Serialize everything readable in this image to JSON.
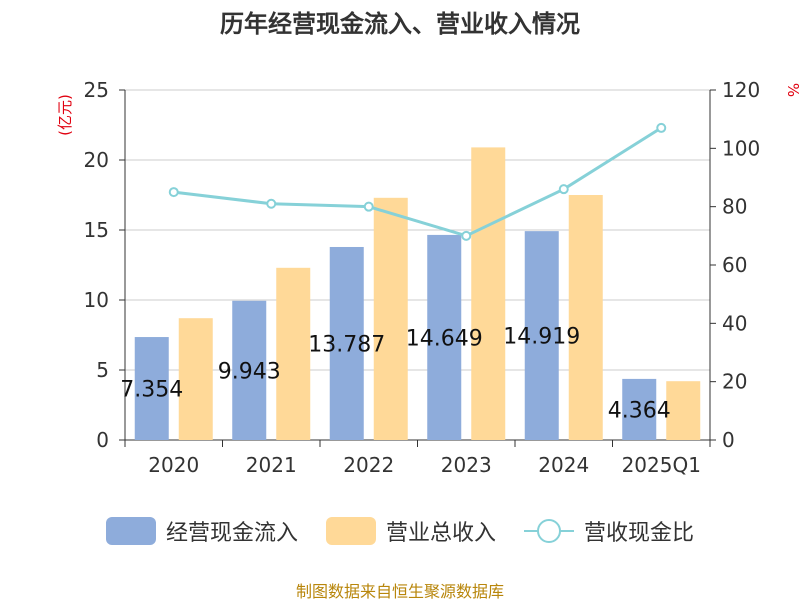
{
  "title": "历年经营现金流入、营业收入情况",
  "source": "制图数据来自恒生聚源数据库",
  "colors": {
    "bar1": "#8eacdb",
    "bar2": "#ffd998",
    "line": "#86d1d8",
    "unit": "#e0000f",
    "axis": "#333333",
    "grid": "#cccccc"
  },
  "chart_data": {
    "type": "bar",
    "title": "历年经营现金流入、营业收入情况",
    "categories": [
      "2020",
      "2021",
      "2022",
      "2023",
      "2024",
      "2025Q1"
    ],
    "left_axis": {
      "unit_label": "(亿元)",
      "range": [
        0,
        25
      ],
      "ticks": [
        0,
        5,
        10,
        15,
        20,
        25
      ]
    },
    "right_axis": {
      "unit_label": "%",
      "range": [
        0,
        120
      ],
      "ticks": [
        0,
        20,
        40,
        60,
        80,
        100,
        120
      ]
    },
    "series": [
      {
        "name": "经营现金流入",
        "type": "bar",
        "axis": "left",
        "values": [
          7.354,
          9.943,
          13.787,
          14.649,
          14.919,
          4.364
        ],
        "labels": [
          "7.354",
          "9.943",
          "13.787",
          "14.649",
          "14.919",
          "4.364"
        ]
      },
      {
        "name": "营业总收入",
        "type": "bar",
        "axis": "left",
        "values": [
          8.7,
          12.3,
          17.3,
          20.9,
          17.5,
          4.2
        ]
      },
      {
        "name": "营收现金比",
        "type": "line",
        "axis": "right",
        "values": [
          85,
          81,
          80,
          70,
          86,
          107
        ]
      }
    ],
    "grid": true,
    "legend_position": "bottom"
  }
}
